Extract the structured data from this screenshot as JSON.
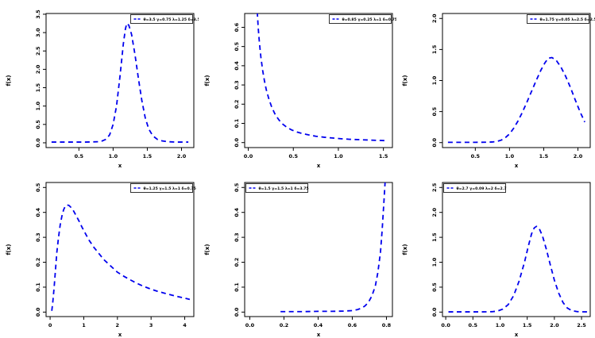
{
  "page": {
    "background": "#ffffff",
    "accent_blue": "#0000EE",
    "axis_color": "#000000"
  },
  "chart_data": [
    {
      "type": "line",
      "title": "",
      "xlabel": "x",
      "ylabel": "f(x)",
      "line_color": "#0000EE",
      "line_style": "dashed",
      "grid": false,
      "legend": {
        "label": "θ=3.5  γ=0.75  λ=1.25  δ=3.56",
        "position": "top-right"
      },
      "xlim": [
        0.02,
        2.18
      ],
      "ylim": [
        -0.13,
        3.52
      ],
      "xticks": [
        0,
        0.5,
        1,
        1.5,
        2
      ],
      "xtick_labels": [
        "0.0",
        "0.5",
        "1.0",
        "1.5",
        "2.0"
      ],
      "yticks": [
        0,
        0.5,
        1,
        1.5,
        2,
        2.5,
        3,
        3.5
      ],
      "ytick_labels": [
        "0.0",
        "0.5",
        "1.0",
        "1.5",
        "2.0",
        "2.5",
        "3.0",
        "3.5"
      ],
      "points": [
        [
          0.1,
          0.02
        ],
        [
          0.2,
          0.02
        ],
        [
          0.3,
          0.02
        ],
        [
          0.4,
          0.02
        ],
        [
          0.5,
          0.02
        ],
        [
          0.6,
          0.02
        ],
        [
          0.7,
          0.025
        ],
        [
          0.78,
          0.03
        ],
        [
          0.84,
          0.05
        ],
        [
          0.9,
          0.1
        ],
        [
          0.95,
          0.22
        ],
        [
          1.0,
          0.5
        ],
        [
          1.05,
          1.0
        ],
        [
          1.1,
          1.8
        ],
        [
          1.15,
          2.7
        ],
        [
          1.18,
          3.1
        ],
        [
          1.2,
          3.25
        ],
        [
          1.23,
          3.2
        ],
        [
          1.27,
          2.95
        ],
        [
          1.32,
          2.4
        ],
        [
          1.37,
          1.75
        ],
        [
          1.42,
          1.15
        ],
        [
          1.47,
          0.68
        ],
        [
          1.52,
          0.38
        ],
        [
          1.58,
          0.19
        ],
        [
          1.65,
          0.09
        ],
        [
          1.72,
          0.05
        ],
        [
          1.8,
          0.03
        ],
        [
          1.9,
          0.02
        ],
        [
          2.0,
          0.02
        ],
        [
          2.1,
          0.02
        ]
      ]
    },
    {
      "type": "line",
      "title": "",
      "xlabel": "x",
      "ylabel": "f(x)",
      "line_color": "#0000EE",
      "line_style": "dashed",
      "grid": false,
      "legend": {
        "label": "θ=0.85  γ=0.25  λ=1  δ=0.75",
        "position": "top-right"
      },
      "xlim": [
        -0.04,
        1.6
      ],
      "ylim": [
        -0.026,
        0.672
      ],
      "xticks": [
        0,
        0.5,
        1,
        1.5
      ],
      "xtick_labels": [
        "0.0",
        "0.5",
        "1.0",
        "1.5"
      ],
      "yticks": [
        0,
        0.1,
        0.2,
        0.3,
        0.4,
        0.5,
        0.6
      ],
      "ytick_labels": [
        "0.0",
        "0.1",
        "0.2",
        "0.3",
        "0.4",
        "0.5",
        "0.6"
      ],
      "points": [
        [
          0.1,
          0.68
        ],
        [
          0.11,
          0.6
        ],
        [
          0.12,
          0.54
        ],
        [
          0.13,
          0.49
        ],
        [
          0.14,
          0.445
        ],
        [
          0.16,
          0.375
        ],
        [
          0.18,
          0.32
        ],
        [
          0.2,
          0.275
        ],
        [
          0.23,
          0.225
        ],
        [
          0.26,
          0.185
        ],
        [
          0.3,
          0.145
        ],
        [
          0.34,
          0.118
        ],
        [
          0.38,
          0.097
        ],
        [
          0.43,
          0.079
        ],
        [
          0.48,
          0.066
        ],
        [
          0.54,
          0.055
        ],
        [
          0.6,
          0.047
        ],
        [
          0.67,
          0.04
        ],
        [
          0.75,
          0.033
        ],
        [
          0.84,
          0.028
        ],
        [
          0.93,
          0.024
        ],
        [
          1.03,
          0.02
        ],
        [
          1.13,
          0.017
        ],
        [
          1.24,
          0.015
        ],
        [
          1.35,
          0.013
        ],
        [
          1.46,
          0.011
        ],
        [
          1.55,
          0.01
        ]
      ]
    },
    {
      "type": "line",
      "title": "",
      "xlabel": "x",
      "ylabel": "f(x)",
      "line_color": "#0000EE",
      "line_style": "dashed",
      "grid": false,
      "legend": {
        "label": "θ=1.75  γ=0.05  λ=2.5  δ=2.5",
        "position": "top-right"
      },
      "xlim": [
        0.02,
        2.18
      ],
      "ylim": [
        -0.08,
        2.08
      ],
      "xticks": [
        0,
        0.5,
        1,
        1.5,
        2
      ],
      "xtick_labels": [
        "0.0",
        "0.5",
        "1.0",
        "1.5",
        "2.0"
      ],
      "yticks": [
        0,
        0.5,
        1,
        1.5,
        2
      ],
      "ytick_labels": [
        "0.0",
        "0.5",
        "1.0",
        "1.5",
        "2.0"
      ],
      "points": [
        [
          0.1,
          0.005
        ],
        [
          0.3,
          0.005
        ],
        [
          0.5,
          0.005
        ],
        [
          0.65,
          0.006
        ],
        [
          0.75,
          0.01
        ],
        [
          0.82,
          0.02
        ],
        [
          0.88,
          0.04
        ],
        [
          0.94,
          0.08
        ],
        [
          1.0,
          0.14
        ],
        [
          1.06,
          0.23
        ],
        [
          1.12,
          0.34
        ],
        [
          1.18,
          0.47
        ],
        [
          1.25,
          0.64
        ],
        [
          1.32,
          0.82
        ],
        [
          1.39,
          1.0
        ],
        [
          1.46,
          1.17
        ],
        [
          1.52,
          1.29
        ],
        [
          1.57,
          1.36
        ],
        [
          1.62,
          1.37
        ],
        [
          1.68,
          1.33
        ],
        [
          1.75,
          1.22
        ],
        [
          1.82,
          1.07
        ],
        [
          1.89,
          0.89
        ],
        [
          1.96,
          0.69
        ],
        [
          2.03,
          0.5
        ],
        [
          2.1,
          0.33
        ]
      ]
    },
    {
      "type": "line",
      "title": "",
      "xlabel": "x",
      "ylabel": "f(x)",
      "line_color": "#0000EE",
      "line_style": "dashed",
      "grid": false,
      "legend": {
        "label": "θ=1.25  γ=1.5  λ=1  δ=0.75",
        "position": "top-right"
      },
      "xlim": [
        -0.12,
        4.27
      ],
      "ylim": [
        -0.018,
        0.52
      ],
      "xticks": [
        0,
        1,
        2,
        3,
        4
      ],
      "xtick_labels": [
        "0",
        "1",
        "2",
        "3",
        "4"
      ],
      "yticks": [
        0,
        0.1,
        0.2,
        0.3,
        0.4,
        0.5
      ],
      "ytick_labels": [
        "0.0",
        "0.1",
        "0.2",
        "0.3",
        "0.4",
        "0.5"
      ],
      "points": [
        [
          0.05,
          0.005
        ],
        [
          0.08,
          0.04
        ],
        [
          0.12,
          0.1
        ],
        [
          0.16,
          0.17
        ],
        [
          0.2,
          0.24
        ],
        [
          0.25,
          0.3
        ],
        [
          0.3,
          0.35
        ],
        [
          0.35,
          0.385
        ],
        [
          0.4,
          0.41
        ],
        [
          0.45,
          0.425
        ],
        [
          0.5,
          0.43
        ],
        [
          0.56,
          0.428
        ],
        [
          0.62,
          0.42
        ],
        [
          0.7,
          0.405
        ],
        [
          0.78,
          0.385
        ],
        [
          0.86,
          0.365
        ],
        [
          0.95,
          0.34
        ],
        [
          1.05,
          0.315
        ],
        [
          1.15,
          0.29
        ],
        [
          1.3,
          0.26
        ],
        [
          1.45,
          0.235
        ],
        [
          1.6,
          0.21
        ],
        [
          1.8,
          0.185
        ],
        [
          2.0,
          0.16
        ],
        [
          2.2,
          0.143
        ],
        [
          2.4,
          0.128
        ],
        [
          2.6,
          0.114
        ],
        [
          2.8,
          0.102
        ],
        [
          3.0,
          0.092
        ],
        [
          3.2,
          0.083
        ],
        [
          3.5,
          0.072
        ],
        [
          3.8,
          0.062
        ],
        [
          4.0,
          0.056
        ],
        [
          4.15,
          0.051
        ]
      ]
    },
    {
      "type": "line",
      "title": "",
      "xlabel": "x",
      "ylabel": "f(x)",
      "line_color": "#0000EE",
      "line_style": "dashed",
      "grid": false,
      "legend": {
        "label": "θ=1.5  γ=1.5  λ=1  δ=3.75",
        "position": "top-left"
      },
      "xlim": [
        -0.03,
        0.835
      ],
      "ylim": [
        -0.018,
        0.52
      ],
      "xticks": [
        0,
        0.2,
        0.4,
        0.6,
        0.8
      ],
      "xtick_labels": [
        "0.0",
        "0.2",
        "0.4",
        "0.6",
        "0.8"
      ],
      "yticks": [
        0,
        0.1,
        0.2,
        0.3,
        0.4,
        0.5
      ],
      "ytick_labels": [
        "0.0",
        "0.1",
        "0.2",
        "0.3",
        "0.4",
        "0.5"
      ],
      "points": [
        [
          0.18,
          0.002
        ],
        [
          0.25,
          0.002
        ],
        [
          0.32,
          0.002
        ],
        [
          0.4,
          0.003
        ],
        [
          0.48,
          0.003
        ],
        [
          0.55,
          0.004
        ],
        [
          0.6,
          0.006
        ],
        [
          0.63,
          0.01
        ],
        [
          0.655,
          0.016
        ],
        [
          0.675,
          0.025
        ],
        [
          0.695,
          0.04
        ],
        [
          0.715,
          0.065
        ],
        [
          0.735,
          0.105
        ],
        [
          0.75,
          0.16
        ],
        [
          0.765,
          0.24
        ],
        [
          0.775,
          0.33
        ],
        [
          0.785,
          0.44
        ],
        [
          0.792,
          0.52
        ]
      ]
    },
    {
      "type": "line",
      "title": "",
      "xlabel": "x",
      "ylabel": "f(x)",
      "line_color": "#0000EE",
      "line_style": "dashed",
      "grid": false,
      "legend": {
        "label": "θ=2.7  γ=0.09  λ=2  δ=2.7",
        "position": "top-left"
      },
      "xlim": [
        -0.06,
        2.66
      ],
      "ylim": [
        -0.09,
        2.6
      ],
      "xticks": [
        0,
        0.5,
        1,
        1.5,
        2,
        2.5
      ],
      "xtick_labels": [
        "0.0",
        "0.5",
        "1.0",
        "1.5",
        "2.0",
        "2.5"
      ],
      "yticks": [
        0,
        0.5,
        1,
        1.5,
        2,
        2.5
      ],
      "ytick_labels": [
        "0.0",
        "0.5",
        "1.0",
        "1.5",
        "2.0",
        "2.5"
      ],
      "points": [
        [
          0.05,
          0.004
        ],
        [
          0.2,
          0.004
        ],
        [
          0.4,
          0.004
        ],
        [
          0.6,
          0.004
        ],
        [
          0.75,
          0.005
        ],
        [
          0.85,
          0.008
        ],
        [
          0.95,
          0.02
        ],
        [
          1.05,
          0.06
        ],
        [
          1.15,
          0.15
        ],
        [
          1.25,
          0.33
        ],
        [
          1.35,
          0.62
        ],
        [
          1.45,
          1.0
        ],
        [
          1.52,
          1.32
        ],
        [
          1.58,
          1.57
        ],
        [
          1.63,
          1.69
        ],
        [
          1.67,
          1.72
        ],
        [
          1.72,
          1.68
        ],
        [
          1.78,
          1.53
        ],
        [
          1.85,
          1.27
        ],
        [
          1.92,
          0.97
        ],
        [
          2.0,
          0.64
        ],
        [
          2.08,
          0.38
        ],
        [
          2.16,
          0.19
        ],
        [
          2.24,
          0.08
        ],
        [
          2.32,
          0.03
        ],
        [
          2.42,
          0.01
        ],
        [
          2.52,
          0.005
        ],
        [
          2.6,
          0.004
        ]
      ]
    }
  ]
}
